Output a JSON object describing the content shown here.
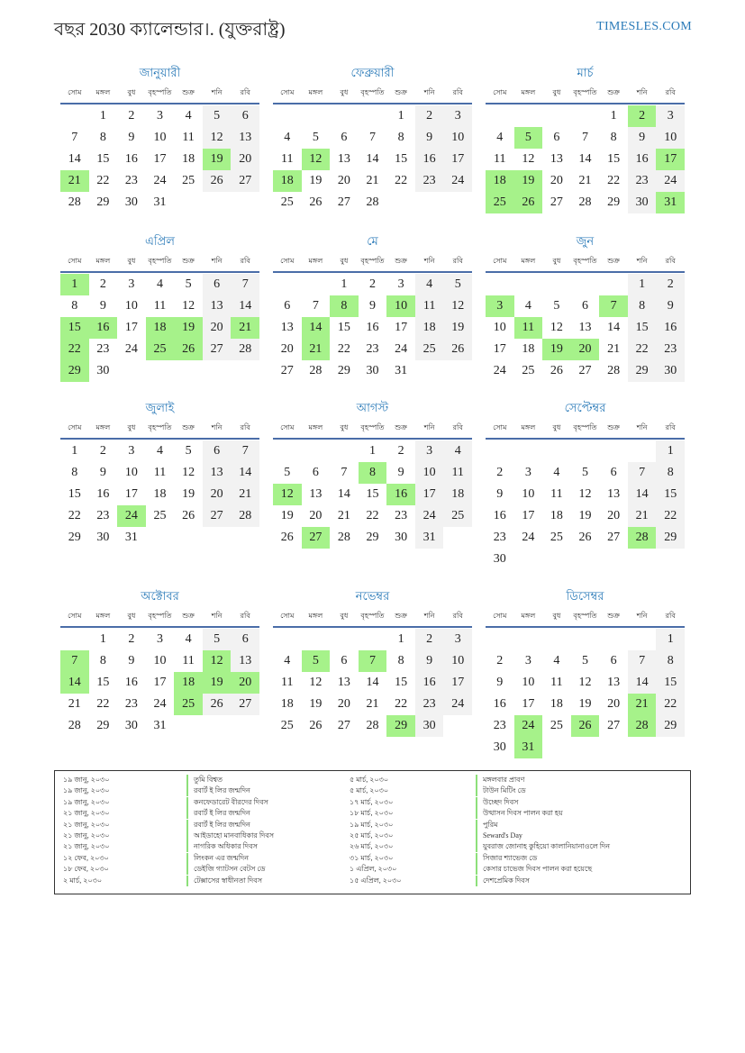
{
  "header": {
    "title": "বছর 2030 ক্যালেন্ডার।. (যুক্তরাষ্ট্র)",
    "site": "TIMESLES.COM"
  },
  "year": 2030,
  "colors": {
    "accent": "#2a7ab8",
    "holiday": "#a6f28a",
    "weekend": "#f2f2f2",
    "rule": "#4a6da8"
  },
  "weekdays": [
    "সোম",
    "মঙ্গল",
    "বুধ",
    "বৃহস্পতি",
    "শুক্র",
    "শনি",
    "রবি"
  ],
  "months": [
    {
      "name": "জানুয়ারী",
      "holidays": [
        19,
        21
      ]
    },
    {
      "name": "ফেব্রুয়ারী",
      "holidays": [
        12,
        18
      ]
    },
    {
      "name": "মার্চ",
      "holidays": [
        2,
        5,
        17,
        18,
        19,
        25,
        26,
        31
      ]
    },
    {
      "name": "এপ্রিল",
      "holidays": [
        1,
        15,
        16,
        18,
        19,
        21,
        22,
        25,
        26,
        29
      ]
    },
    {
      "name": "মে",
      "holidays": [
        8,
        10,
        14,
        21
      ]
    },
    {
      "name": "জুন",
      "holidays": [
        3,
        7,
        11,
        19,
        20
      ]
    },
    {
      "name": "জুলাই",
      "holidays": [
        24
      ]
    },
    {
      "name": "আগস্ট",
      "holidays": [
        8,
        12,
        16,
        27
      ]
    },
    {
      "name": "সেপ্টেম্বর",
      "holidays": [
        28
      ]
    },
    {
      "name": "অক্টোবর",
      "holidays": [
        7,
        12,
        14,
        18,
        19,
        20,
        25
      ]
    },
    {
      "name": "নভেম্বর",
      "holidays": [
        5,
        7,
        29
      ]
    },
    {
      "name": "ডিসেম্বর",
      "holidays": [
        21,
        24,
        26,
        28,
        31
      ]
    }
  ],
  "holiday_list": [
    {
      "date": "১৯ জানু, ২০৩০",
      "name": "তুমি বিশ্বত"
    },
    {
      "date": "১৯ জানু, ২০৩০",
      "name": "রবার্ট ই লির জন্মদিন"
    },
    {
      "date": "১৯ জানু, ২০৩০",
      "name": "কনফেডারেট বীরদের দিবস"
    },
    {
      "date": "২১ জানু, ২০৩০",
      "name": "রবার্ট ই লির জন্মদিন"
    },
    {
      "date": "২১ জানু, ২০৩০",
      "name": "রবার্ট ই লির জন্মদিন"
    },
    {
      "date": "২১ জানু, ২০৩০",
      "name": "আইডাহো মানবাধিকার দিবস"
    },
    {
      "date": "২১ জানু, ২০৩০",
      "name": "নাগরিক অধিকার দিবস"
    },
    {
      "date": "১২ ফেব, ২০৩০",
      "name": "লিংকন এর জন্মদিন"
    },
    {
      "date": "১৮ ফেব, ২০৩০",
      "name": "ডেইজি গ্যাটসন বেটস ডে"
    },
    {
      "date": "২ মার্চ, ২০৩০",
      "name": "টেক্সাসের স্বাধীনতা দিবস"
    },
    {
      "date": "৫ মার্চ, ২০৩০",
      "name": "মঙ্গলবার প্রাবণ"
    },
    {
      "date": "৫ মার্চ, ২০৩০",
      "name": "টাউন মিটিং ডে"
    },
    {
      "date": "১৭ মার্চ, ২০৩০",
      "name": "উচ্ছেদ দিবস"
    },
    {
      "date": "১৮ মার্চ, ২০৩০",
      "name": "উত্থাসন দিবস পালন করা হয়"
    },
    {
      "date": "১৯ মার্চ, ২০৩০",
      "name": "পুরিম"
    },
    {
      "date": "২৫ মার্চ, ২০৩০",
      "name": "Seward's Day"
    },
    {
      "date": "২৬ মার্চ, ২০৩০",
      "name": "যুবরাজ জোনাহ কুহিয়ো কালানিয়ানাওলে দিন"
    },
    {
      "date": "৩১ মার্চ, ২০৩০",
      "name": "সিজার শ্যাভেজ ডে"
    },
    {
      "date": "১ এপ্রিল, ২০৩০",
      "name": "কেসার চাভেজ দিবস পালন করা হয়েছে"
    },
    {
      "date": "১৫ এপ্রিল, ২০৩০",
      "name": "দেশপ্রেমিক দিবস"
    }
  ]
}
